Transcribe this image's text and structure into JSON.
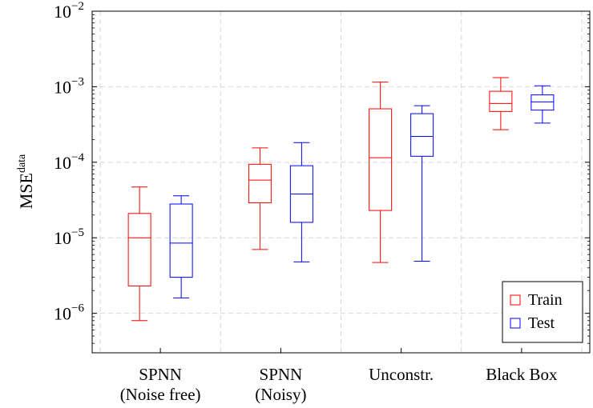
{
  "chart_data": {
    "type": "box",
    "ylabel_base": "MSE",
    "ylabel_sup": "data",
    "y_scale": "log",
    "ylim": [
      3e-07,
      0.01
    ],
    "y_ticks": [
      {
        "value": 0.01,
        "base": "10",
        "exp": "−2"
      },
      {
        "value": 0.001,
        "base": "10",
        "exp": "−3"
      },
      {
        "value": 0.0001,
        "base": "10",
        "exp": "−4"
      },
      {
        "value": 1e-05,
        "base": "10",
        "exp": "−5"
      },
      {
        "value": 1e-06,
        "base": "10",
        "exp": "−6"
      }
    ],
    "grid": true,
    "legend_position": "bottom-right",
    "categories": [
      {
        "line1": "SPNN",
        "line2": "(Noise free)"
      },
      {
        "line1": "SPNN",
        "line2": "(Noisy)"
      },
      {
        "line1": "Unconstr.",
        "line2": ""
      },
      {
        "line1": "Black Box",
        "line2": ""
      }
    ],
    "series": [
      {
        "name": "Train",
        "color": "#ff0000",
        "boxes": [
          {
            "min": 8e-07,
            "q1": 2.3e-06,
            "median": 1e-05,
            "q3": 2.1e-05,
            "max": 4.7e-05
          },
          {
            "min": 7e-06,
            "q1": 2.9e-05,
            "median": 5.8e-05,
            "q3": 9.4e-05,
            "max": 0.000155
          },
          {
            "min": 4.7e-06,
            "q1": 2.3e-05,
            "median": 0.000115,
            "q3": 0.00051,
            "max": 0.00115
          },
          {
            "min": 0.00027,
            "q1": 0.00047,
            "median": 0.0006,
            "q3": 0.00087,
            "max": 0.00132
          }
        ]
      },
      {
        "name": "Test",
        "color": "#0000ff",
        "boxes": [
          {
            "min": 1.6e-06,
            "q1": 3e-06,
            "median": 8.5e-06,
            "q3": 2.8e-05,
            "max": 3.6e-05
          },
          {
            "min": 4.8e-06,
            "q1": 1.6e-05,
            "median": 3.8e-05,
            "q3": 9e-05,
            "max": 0.000182
          },
          {
            "min": 4.9e-06,
            "q1": 0.00012,
            "median": 0.00022,
            "q3": 0.00044,
            "max": 0.00056
          },
          {
            "min": 0.00033,
            "q1": 0.00049,
            "median": 0.00063,
            "q3": 0.00078,
            "max": 0.00103
          }
        ]
      }
    ]
  }
}
